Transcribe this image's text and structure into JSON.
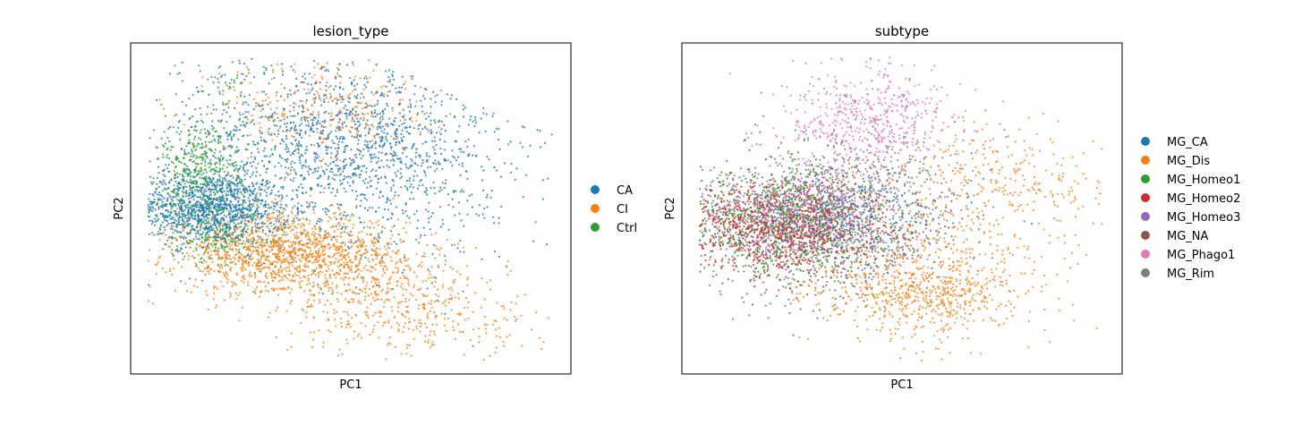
{
  "chart_data": [
    {
      "type": "scatter",
      "title": "lesion_type",
      "xlabel": "PC1",
      "ylabel": "PC2",
      "xticks": "none",
      "yticks": "none",
      "legend_position": "right-outside",
      "series": [
        {
          "name": "CA",
          "color": "#1f77b4",
          "clusters": [
            {
              "center": [
                0.18,
                0.5
              ],
              "spread": [
                0.09,
                0.055
              ],
              "n": 1100
            },
            {
              "center": [
                0.48,
                0.7
              ],
              "spread": [
                0.18,
                0.13
              ],
              "n": 1300
            },
            {
              "center": [
                0.62,
                0.55
              ],
              "spread": [
                0.18,
                0.15
              ],
              "n": 250
            }
          ]
        },
        {
          "name": "CI",
          "color": "#ff7f0e",
          "clusters": [
            {
              "center": [
                0.36,
                0.36
              ],
              "spread": [
                0.13,
                0.06
              ],
              "n": 1400
            },
            {
              "center": [
                0.6,
                0.22
              ],
              "spread": [
                0.12,
                0.08
              ],
              "n": 400
            },
            {
              "center": [
                0.45,
                0.8
              ],
              "spread": [
                0.12,
                0.09
              ],
              "n": 300
            },
            {
              "center": [
                0.8,
                0.13
              ],
              "spread": [
                0.1,
                0.07
              ],
              "n": 60
            }
          ]
        },
        {
          "name": "Ctrl",
          "color": "#2ca02c",
          "clusters": [
            {
              "center": [
                0.15,
                0.62
              ],
              "spread": [
                0.06,
                0.08
              ],
              "n": 450
            },
            {
              "center": [
                0.2,
                0.42
              ],
              "spread": [
                0.08,
                0.05
              ],
              "n": 250
            },
            {
              "center": [
                0.2,
                0.85
              ],
              "spread": [
                0.05,
                0.07
              ],
              "n": 60
            }
          ]
        }
      ]
    },
    {
      "type": "scatter",
      "title": "subtype",
      "xlabel": "PC1",
      "ylabel": "PC2",
      "xticks": "none",
      "yticks": "none",
      "legend_position": "right-outside",
      "series": [
        {
          "name": "MG_CA",
          "color": "#1f77b4",
          "clusters": [
            {
              "center": [
                0.35,
                0.47
              ],
              "spread": [
                0.13,
                0.07
              ],
              "n": 350
            }
          ]
        },
        {
          "name": "MG_Dis",
          "color": "#ff7f0e",
          "clusters": [
            {
              "center": [
                0.55,
                0.25
              ],
              "spread": [
                0.12,
                0.07
              ],
              "n": 700
            },
            {
              "center": [
                0.7,
                0.55
              ],
              "spread": [
                0.15,
                0.12
              ],
              "n": 400
            }
          ]
        },
        {
          "name": "MG_Homeo1",
          "color": "#2ca02c",
          "clusters": [
            {
              "center": [
                0.22,
                0.46
              ],
              "spread": [
                0.12,
                0.1
              ],
              "n": 700
            }
          ]
        },
        {
          "name": "MG_Homeo2",
          "color": "#d62728",
          "clusters": [
            {
              "center": [
                0.2,
                0.45
              ],
              "spread": [
                0.12,
                0.07
              ],
              "n": 900
            }
          ]
        },
        {
          "name": "MG_Homeo3",
          "color": "#9467bd",
          "clusters": [
            {
              "center": [
                0.28,
                0.48
              ],
              "spread": [
                0.12,
                0.07
              ],
              "n": 600
            }
          ]
        },
        {
          "name": "MG_NA",
          "color": "#8c564b",
          "clusters": [
            {
              "center": [
                0.3,
                0.42
              ],
              "spread": [
                0.14,
                0.09
              ],
              "n": 700
            }
          ]
        },
        {
          "name": "MG_Phago1",
          "color": "#e377c2",
          "clusters": [
            {
              "center": [
                0.42,
                0.78
              ],
              "spread": [
                0.1,
                0.08
              ],
              "n": 500
            }
          ]
        },
        {
          "name": "MG_Rim",
          "color": "#7f7f7f",
          "clusters": [
            {
              "center": [
                0.42,
                0.55
              ],
              "spread": [
                0.12,
                0.12
              ],
              "n": 500
            }
          ]
        }
      ]
    }
  ]
}
